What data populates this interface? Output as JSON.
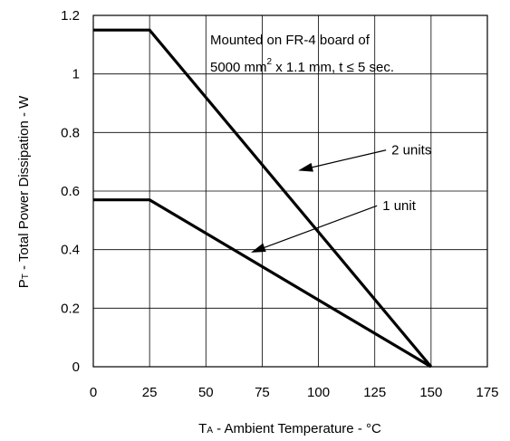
{
  "chart_data": {
    "type": "line",
    "xlabel_main": "T",
    "xlabel_sub": "A",
    "xlabel_rest": " - Ambient Temperature - °C",
    "ylabel_main": "P",
    "ylabel_sub": "T",
    "ylabel_rest": " - Total Power Dissipation - W",
    "xlim": [
      0,
      175
    ],
    "ylim": [
      0,
      1.2
    ],
    "x_ticks": [
      0,
      25,
      50,
      75,
      100,
      125,
      150,
      175
    ],
    "x_tick_labels": [
      "0",
      "25",
      "50",
      "75",
      "100",
      "125",
      "150",
      "175"
    ],
    "y_ticks": [
      0,
      0.2,
      0.4,
      0.6,
      0.8,
      1.0,
      1.2
    ],
    "y_tick_labels": [
      "0",
      "0.2",
      "0.4",
      "0.6",
      "0.8",
      "1",
      "1.2"
    ],
    "grid": true,
    "series": [
      {
        "name": "2 units",
        "x": [
          0,
          25,
          150
        ],
        "y": [
          1.15,
          1.15,
          0
        ]
      },
      {
        "name": "1 unit",
        "x": [
          0,
          25,
          150
        ],
        "y": [
          0.57,
          0.57,
          0
        ]
      }
    ],
    "annotation": {
      "line1": "Mounted on FR-4 board of",
      "line2_a": "5000 mm",
      "line2_sup": "2",
      "line2_b": " x 1.1 mm, t ≤ 5 sec."
    },
    "callouts": [
      {
        "text": "2 units",
        "series": "2 units",
        "label_pos": [
          130,
          0.74
        ],
        "arrow_to": [
          91,
          0.67
        ]
      },
      {
        "text": "1 unit",
        "series": "1 unit",
        "label_pos": [
          126,
          0.55
        ],
        "arrow_to": [
          70,
          0.39
        ]
      }
    ]
  }
}
